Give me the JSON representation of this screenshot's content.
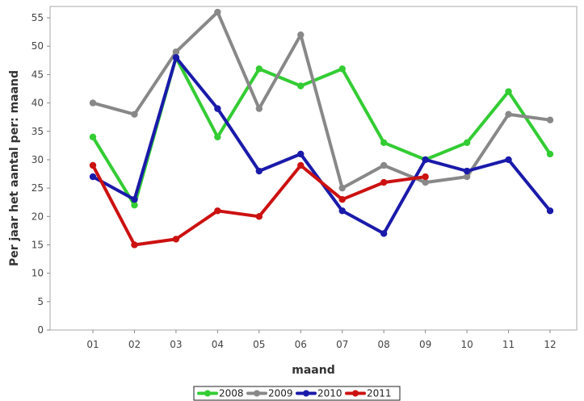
{
  "chart_data": {
    "type": "line",
    "xlabel": "maand",
    "ylabel": "Per jaar het aantal per: maand",
    "categories": [
      "01",
      "02",
      "03",
      "04",
      "05",
      "06",
      "07",
      "08",
      "09",
      "10",
      "11",
      "12"
    ],
    "ylim": [
      0,
      57
    ],
    "yticks": [
      0,
      5,
      10,
      15,
      20,
      25,
      30,
      35,
      40,
      45,
      50,
      55
    ],
    "grid": false,
    "legend_position": "bottom-center",
    "series": [
      {
        "name": "2008",
        "color": "#33cc33",
        "values": [
          34,
          22,
          48,
          34,
          46,
          43,
          46,
          33,
          30,
          33,
          42,
          31
        ]
      },
      {
        "name": "2009",
        "color": "#888888",
        "values": [
          40,
          38,
          49,
          56,
          39,
          52,
          25,
          29,
          26,
          27,
          38,
          37
        ]
      },
      {
        "name": "2010",
        "color": "#1a1aaa",
        "values": [
          27,
          23,
          48,
          39,
          28,
          31,
          21,
          17,
          30,
          28,
          30,
          21
        ]
      },
      {
        "name": "2011",
        "color": "#cc1111",
        "values": [
          29,
          15,
          16,
          21,
          20,
          29,
          23,
          26,
          27,
          null,
          null,
          null
        ]
      }
    ]
  }
}
